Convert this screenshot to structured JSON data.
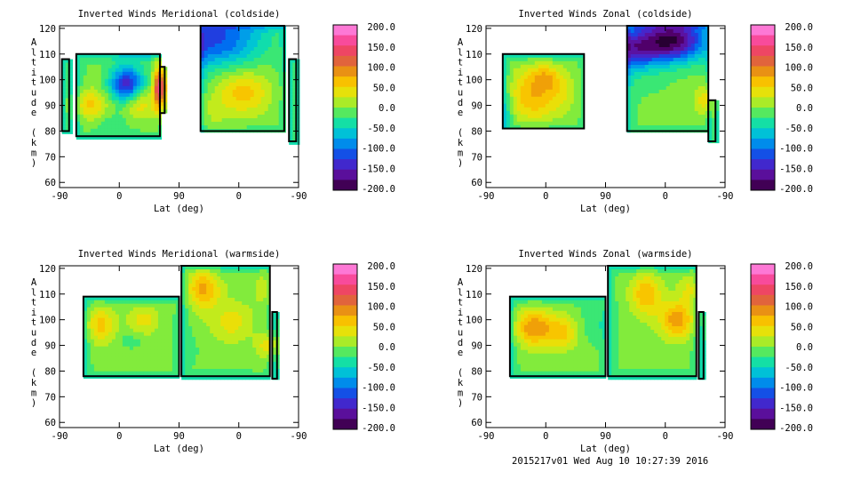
{
  "chart_data": [
    {
      "type": "heatmap",
      "title": "Inverted Winds Meridional (coldside)",
      "xlabel": "Lat (deg)",
      "ylabel": "Altitude (km)",
      "x_ticks": [
        "-90",
        "0",
        "90",
        "0",
        "-90"
      ],
      "y_ticks": [
        "60",
        "70",
        "80",
        "90",
        "100",
        "110",
        "120"
      ],
      "ylim": [
        58,
        121
      ],
      "colorbar_ticks": [
        "200.0",
        "150.0",
        "100.0",
        "50.0",
        "0.0",
        "-50.0",
        "-100.0",
        "-150.0",
        "-200.0"
      ],
      "colorbar_range": [
        -200,
        200
      ],
      "blobs": [
        {
          "x": 0.04,
          "y": 96,
          "v": -5,
          "w": 0.04,
          "h": 16
        },
        {
          "x": 0.42,
          "y": 97,
          "v": 185,
          "w": 0.025,
          "h": 9
        },
        {
          "x": 0.12,
          "y": 90,
          "v": 60,
          "w": 0.08,
          "h": 6
        },
        {
          "x": 0.28,
          "y": 98,
          "v": -145,
          "w": 0.07,
          "h": 7
        },
        {
          "x": 0.33,
          "y": 91,
          "v": 55,
          "w": 0.07,
          "h": 6
        },
        {
          "x": 0.22,
          "y": 84,
          "v": -20,
          "w": 0.09,
          "h": 5
        },
        {
          "x": 0.65,
          "y": 115,
          "v": -110,
          "w": 0.2,
          "h": 10
        },
        {
          "x": 0.77,
          "y": 95,
          "v": 60,
          "w": 0.1,
          "h": 8
        },
        {
          "x": 0.62,
          "y": 88,
          "v": 20,
          "w": 0.08,
          "h": 7
        },
        {
          "x": 0.98,
          "y": 95,
          "v": -5,
          "w": 0.02,
          "h": 12
        }
      ]
    },
    {
      "type": "heatmap",
      "title": "Inverted Winds Zonal (coldside)",
      "xlabel": "Lat (deg)",
      "ylabel": "Altitude (km)",
      "x_ticks": [
        "-90",
        "0",
        "90",
        "0",
        "-90"
      ],
      "y_ticks": [
        "60",
        "70",
        "80",
        "90",
        "100",
        "110",
        "120"
      ],
      "ylim": [
        58,
        121
      ],
      "colorbar_ticks": [
        "200.0",
        "150.0",
        "100.0",
        "50.0",
        "0.0",
        "-50.0",
        "-100.0",
        "-150.0",
        "-200.0"
      ],
      "colorbar_range": [
        -200,
        200
      ],
      "blobs": [
        {
          "x": 0.2,
          "y": 94,
          "v": 70,
          "w": 0.11,
          "h": 10
        },
        {
          "x": 0.25,
          "y": 101,
          "v": 45,
          "w": 0.06,
          "h": 5
        },
        {
          "x": 0.32,
          "y": 96,
          "v": 20,
          "w": 0.05,
          "h": 6
        },
        {
          "x": 0.08,
          "y": 88,
          "v": -30,
          "w": 0.04,
          "h": 10
        },
        {
          "x": 0.78,
          "y": 115,
          "v": -185,
          "w": 0.14,
          "h": 8
        },
        {
          "x": 0.62,
          "y": 112,
          "v": -110,
          "w": 0.1,
          "h": 8
        },
        {
          "x": 0.7,
          "y": 98,
          "v": -10,
          "w": 0.12,
          "h": 10
        },
        {
          "x": 0.92,
          "y": 92,
          "v": 60,
          "w": 0.04,
          "h": 6
        }
      ]
    },
    {
      "type": "heatmap",
      "title": "Inverted Winds Meridional (warmside)",
      "xlabel": "Lat (deg)",
      "ylabel": "Altitude (km)",
      "x_ticks": [
        "-90",
        "0",
        "90",
        "0",
        "-90"
      ],
      "y_ticks": [
        "60",
        "70",
        "80",
        "90",
        "100",
        "110",
        "120"
      ],
      "ylim": [
        58,
        121
      ],
      "colorbar_ticks": [
        "200.0",
        "150.0",
        "100.0",
        "50.0",
        "0.0",
        "-50.0",
        "-100.0",
        "-150.0",
        "-200.0"
      ],
      "colorbar_range": [
        -200,
        200
      ],
      "blobs": [
        {
          "x": 0.17,
          "y": 98,
          "v": 60,
          "w": 0.06,
          "h": 7
        },
        {
          "x": 0.35,
          "y": 100,
          "v": 40,
          "w": 0.06,
          "h": 6
        },
        {
          "x": 0.3,
          "y": 92,
          "v": -20,
          "w": 0.06,
          "h": 4
        },
        {
          "x": 0.6,
          "y": 112,
          "v": 75,
          "w": 0.07,
          "h": 8
        },
        {
          "x": 0.72,
          "y": 99,
          "v": 40,
          "w": 0.08,
          "h": 7
        },
        {
          "x": 0.86,
          "y": 112,
          "v": 25,
          "w": 0.05,
          "h": 8
        },
        {
          "x": 0.88,
          "y": 90,
          "v": 60,
          "w": 0.05,
          "h": 5
        },
        {
          "x": 0.55,
          "y": 88,
          "v": -10,
          "w": 0.06,
          "h": 6
        }
      ]
    },
    {
      "type": "heatmap",
      "title": "Inverted Winds Zonal (warmside)",
      "xlabel": "Lat (deg)",
      "ylabel": "Altitude (km)",
      "x_ticks": [
        "-90",
        "0",
        "90",
        "0",
        "-90"
      ],
      "y_ticks": [
        "60",
        "70",
        "80",
        "90",
        "100",
        "110",
        "120"
      ],
      "ylim": [
        58,
        121
      ],
      "colorbar_ticks": [
        "200.0",
        "150.0",
        "100.0",
        "50.0",
        "0.0",
        "-50.0",
        "-100.0",
        "-150.0",
        "-200.0"
      ],
      "colorbar_range": [
        -200,
        200
      ],
      "blobs": [
        {
          "x": 0.2,
          "y": 97,
          "v": 90,
          "w": 0.08,
          "h": 7
        },
        {
          "x": 0.32,
          "y": 95,
          "v": 55,
          "w": 0.06,
          "h": 6
        },
        {
          "x": 0.45,
          "y": 98,
          "v": -25,
          "w": 0.06,
          "h": 7
        },
        {
          "x": 0.67,
          "y": 110,
          "v": 70,
          "w": 0.06,
          "h": 8
        },
        {
          "x": 0.8,
          "y": 100,
          "v": 85,
          "w": 0.07,
          "h": 7
        },
        {
          "x": 0.86,
          "y": 112,
          "v": 40,
          "w": 0.05,
          "h": 6
        },
        {
          "x": 0.6,
          "y": 89,
          "v": 0,
          "w": 0.08,
          "h": 6
        }
      ]
    }
  ],
  "footer": {
    "stamp": "2015217v01 Wed Aug 10 10:27:39 2016"
  }
}
